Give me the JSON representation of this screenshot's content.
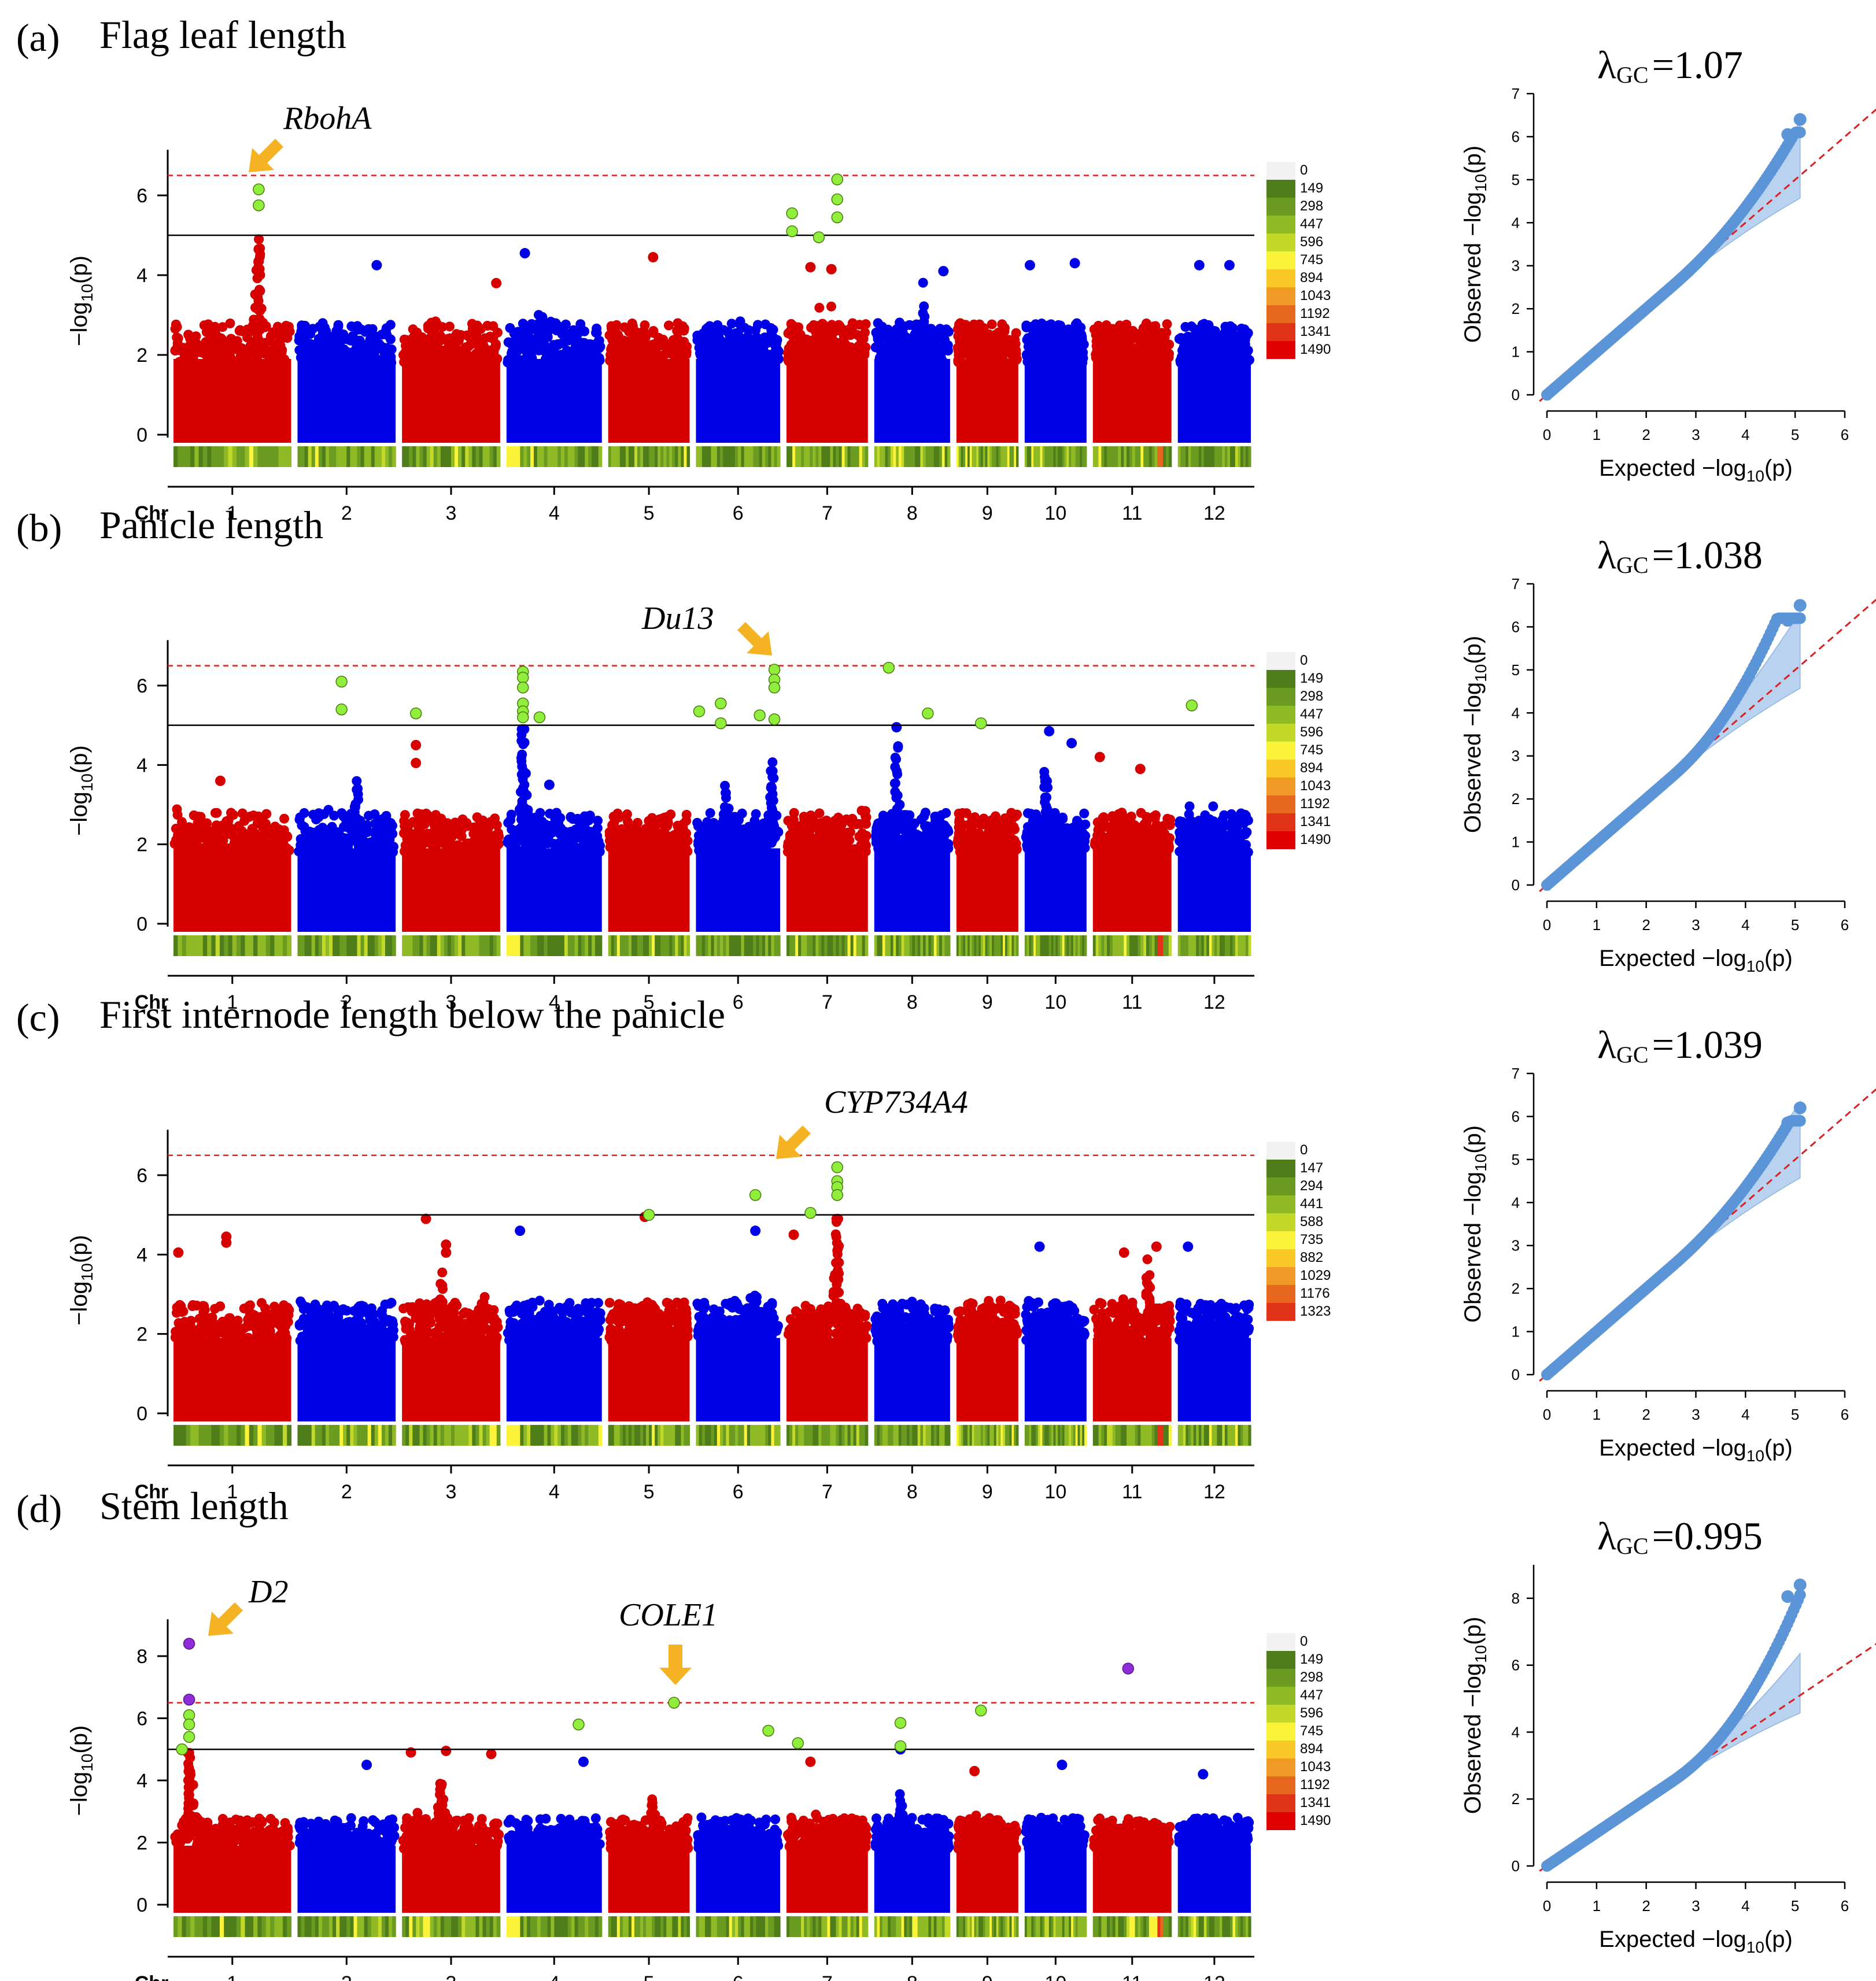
{
  "figure": {
    "genome": {
      "chromosome_axis_label": "Chr",
      "chromosomes": [
        "1",
        "2",
        "3",
        "4",
        "5",
        "6",
        "7",
        "8",
        "9",
        "10",
        "11",
        "12"
      ],
      "chromosome_weights": [
        43,
        36,
        36,
        35,
        30,
        31,
        30,
        28,
        23,
        23,
        29,
        27
      ],
      "colors": {
        "odd": "#d60000",
        "even": "#0000e6",
        "significant": "#90ee3c",
        "top_hit": "#8f2bd8",
        "arrow": "#f5b323",
        "qq_point": "#5b95d8",
        "qq_band": "#b9d2f0",
        "qq_line": "#d92020",
        "threshold_red": "#d92020"
      }
    },
    "density_legend_colors": [
      "#f2f2f2",
      "#4f7d19",
      "#6b9c21",
      "#8fba26",
      "#c3d92a",
      "#fbf23a",
      "#f8c826",
      "#f19926",
      "#e8671e",
      "#e03318",
      "#e00000"
    ],
    "panels": [
      {
        "letter": "(a)",
        "title": "Flag leaf length",
        "gene": "RbohA",
        "gene_chr": 1,
        "gene_pos": 0.72,
        "lambda_label": "λ",
        "lambda_sub": "GC",
        "lambda_value": "=1.07",
        "y_ticks": [
          "0",
          "2",
          "4",
          "6"
        ],
        "ylim": [
          0,
          7
        ],
        "suggestive": 5.0,
        "genomewide": 6.5,
        "density_legend": [
          "0",
          "149",
          "298",
          "447",
          "596",
          "745",
          "894",
          "1043",
          "1192",
          "1341",
          "1490"
        ],
        "peaks": [
          [
            1,
            0.72,
            3.0
          ],
          [
            4,
            0.35,
            1.0
          ],
          [
            7,
            0.4,
            0.8
          ],
          [
            7,
            0.55,
            0.6
          ],
          [
            8,
            0.65,
            1.2
          ]
        ],
        "sig_points": [
          [
            1,
            0.72,
            6.15
          ],
          [
            1,
            0.72,
            5.75
          ],
          [
            7,
            0.08,
            5.55
          ],
          [
            7,
            0.08,
            5.1
          ],
          [
            7,
            0.4,
            4.95
          ],
          [
            7,
            0.62,
            6.4
          ],
          [
            7,
            0.62,
            5.9
          ],
          [
            7,
            0.62,
            5.45
          ]
        ],
        "top_points": [],
        "hi_points": [
          [
            1,
            0.72,
            4.65
          ],
          [
            1,
            0.72,
            4.35
          ],
          [
            4,
            0.2,
            4.55
          ],
          [
            5,
            0.55,
            4.45
          ],
          [
            7,
            0.3,
            4.2
          ],
          [
            7,
            0.55,
            4.15
          ],
          [
            8,
            0.9,
            4.1
          ],
          [
            10,
            0.1,
            4.25
          ],
          [
            10,
            0.8,
            4.3
          ],
          [
            12,
            0.3,
            4.25
          ],
          [
            12,
            0.7,
            4.25
          ],
          [
            2,
            0.8,
            4.25
          ],
          [
            3,
            0.95,
            3.8
          ]
        ],
        "qq_extra": 1.2,
        "qq_max_obs": 6.4,
        "qq_y_ticks": [
          "0",
          "1",
          "2",
          "3",
          "4",
          "5",
          "6",
          "7"
        ],
        "qq_ylim": [
          0,
          7
        ]
      },
      {
        "letter": "(b)",
        "title": "Panicle length",
        "gene": "Du13",
        "gene_chr": 6,
        "gene_pos": 0.92,
        "lambda_label": "λ",
        "lambda_sub": "GC",
        "lambda_value": "=1.038",
        "y_ticks": [
          "0",
          "2",
          "4",
          "6"
        ],
        "ylim": [
          0,
          7
        ],
        "suggestive": 5.0,
        "genomewide": 6.5,
        "density_legend": [
          "0",
          "149",
          "298",
          "447",
          "596",
          "745",
          "894",
          "1043",
          "1192",
          "1341",
          "1490"
        ],
        "peaks": [
          [
            4,
            0.18,
            3.5
          ],
          [
            8,
            0.3,
            2.5
          ],
          [
            6,
            0.35,
            1.5
          ],
          [
            6,
            0.9,
            2.0
          ],
          [
            10,
            0.35,
            1.8
          ],
          [
            2,
            0.6,
            1.5
          ]
        ],
        "sig_points": [
          [
            2,
            0.45,
            6.1
          ],
          [
            2,
            0.45,
            5.4
          ],
          [
            3,
            0.15,
            5.3
          ],
          [
            4,
            0.18,
            6.35
          ],
          [
            4,
            0.18,
            6.2
          ],
          [
            4,
            0.18,
            5.95
          ],
          [
            4,
            0.18,
            5.55
          ],
          [
            4,
            0.18,
            5.35
          ],
          [
            4,
            0.18,
            5.2
          ],
          [
            4,
            0.35,
            5.2
          ],
          [
            6,
            0.05,
            5.35
          ],
          [
            6,
            0.3,
            5.55
          ],
          [
            6,
            0.3,
            5.05
          ],
          [
            6,
            0.75,
            5.25
          ],
          [
            6,
            0.92,
            6.4
          ],
          [
            6,
            0.92,
            6.15
          ],
          [
            6,
            0.92,
            5.95
          ],
          [
            6,
            0.92,
            5.15
          ],
          [
            8,
            0.2,
            6.45
          ],
          [
            8,
            0.7,
            5.3
          ],
          [
            9,
            0.4,
            5.05
          ],
          [
            12,
            0.2,
            5.5
          ]
        ],
        "top_points": [],
        "hi_points": [
          [
            3,
            0.15,
            4.5
          ],
          [
            3,
            0.15,
            4.05
          ],
          [
            8,
            0.3,
            4.95
          ],
          [
            10,
            0.4,
            4.85
          ],
          [
            10,
            0.75,
            4.55
          ],
          [
            11,
            0.1,
            4.2
          ],
          [
            11,
            0.6,
            3.9
          ],
          [
            4,
            0.45,
            3.5
          ],
          [
            1,
            0.4,
            3.6
          ]
        ],
        "qq_extra": 2.4,
        "qq_max_obs": 6.5,
        "qq_y_ticks": [
          "0",
          "1",
          "2",
          "3",
          "4",
          "5",
          "6",
          "7"
        ],
        "qq_ylim": [
          0,
          7
        ]
      },
      {
        "letter": "(c)",
        "title": "First internode length below the panicle",
        "gene": "CYP734A4",
        "gene_chr": 6,
        "gene_pos": 0.96,
        "lambda_label": "λ",
        "lambda_sub": "GC",
        "lambda_value": "=1.039",
        "y_ticks": [
          "0",
          "2",
          "4",
          "6"
        ],
        "ylim": [
          0,
          7
        ],
        "suggestive": 5.0,
        "genomewide": 6.5,
        "density_legend": [
          "0",
          "147",
          "294",
          "441",
          "588",
          "735",
          "882",
          "1029",
          "1176",
          "1323"
        ],
        "peaks": [
          [
            7,
            0.62,
            3.5
          ],
          [
            3,
            0.4,
            1.5
          ],
          [
            11,
            0.7,
            1.5
          ],
          [
            6,
            0.7,
            1.0
          ]
        ],
        "sig_points": [
          [
            5,
            0.5,
            5.0
          ],
          [
            6,
            0.7,
            5.5
          ],
          [
            7,
            0.3,
            5.05
          ],
          [
            7,
            0.62,
            6.2
          ],
          [
            7,
            0.62,
            5.85
          ],
          [
            7,
            0.62,
            5.7
          ],
          [
            7,
            0.62,
            5.5
          ]
        ],
        "top_points": [],
        "hi_points": [
          [
            3,
            0.25,
            4.9
          ],
          [
            5,
            0.45,
            4.95
          ],
          [
            4,
            0.15,
            4.6
          ],
          [
            6,
            0.7,
            4.6
          ],
          [
            7,
            0.1,
            4.5
          ],
          [
            1,
            0.45,
            4.45
          ],
          [
            1,
            0.45,
            4.3
          ],
          [
            1,
            0.05,
            4.05
          ],
          [
            10,
            0.25,
            4.2
          ],
          [
            11,
            0.4,
            4.05
          ],
          [
            11,
            0.8,
            4.2
          ],
          [
            12,
            0.15,
            4.2
          ],
          [
            3,
            0.45,
            4.25
          ],
          [
            3,
            0.45,
            4.05
          ]
        ],
        "qq_extra": 1.2,
        "qq_max_obs": 6.2,
        "qq_y_ticks": [
          "0",
          "1",
          "2",
          "3",
          "4",
          "5",
          "6",
          "7"
        ],
        "qq_ylim": [
          0,
          7
        ]
      },
      {
        "letter": "(d)",
        "title": "Stem length",
        "gene": "D2",
        "gene_chr": 1,
        "gene_pos": 0.14,
        "gene2": "COLE1",
        "gene2_chr": 5,
        "gene2_pos": 0.8,
        "lambda_label": "λ",
        "lambda_sub": "GC",
        "lambda_value": "=0.995",
        "y_ticks": [
          "0",
          "2",
          "4",
          "6",
          "8"
        ],
        "ylim": [
          0,
          9
        ],
        "suggestive": 5.0,
        "genomewide": 6.5,
        "density_legend": [
          "0",
          "149",
          "298",
          "447",
          "596",
          "745",
          "894",
          "1043",
          "1192",
          "1341",
          "1490"
        ],
        "peaks": [
          [
            1,
            0.14,
            3.0
          ],
          [
            3,
            0.4,
            2.0
          ],
          [
            5,
            0.55,
            1.5
          ],
          [
            8,
            0.35,
            1.5
          ]
        ],
        "sig_points": [
          [
            1,
            0.14,
            6.6
          ],
          [
            1,
            0.14,
            6.1
          ],
          [
            1,
            0.14,
            5.8
          ],
          [
            1,
            0.14,
            5.4
          ],
          [
            1,
            0.08,
            5.0
          ],
          [
            4,
            0.75,
            5.8
          ],
          [
            5,
            0.8,
            6.5
          ],
          [
            6,
            0.85,
            5.6
          ],
          [
            7,
            0.15,
            5.2
          ],
          [
            8,
            0.35,
            5.85
          ],
          [
            8,
            0.35,
            5.1
          ],
          [
            9,
            0.4,
            6.25
          ]
        ],
        "top_points": [
          [
            1,
            0.14,
            8.4
          ],
          [
            1,
            0.14,
            6.6
          ],
          [
            11,
            0.45,
            7.6
          ]
        ],
        "hi_points": [
          [
            3,
            0.1,
            4.9
          ],
          [
            3,
            0.45,
            4.95
          ],
          [
            3,
            0.9,
            4.85
          ],
          [
            7,
            0.3,
            4.6
          ],
          [
            8,
            0.35,
            5.0
          ],
          [
            9,
            0.3,
            4.3
          ],
          [
            10,
            0.6,
            4.5
          ],
          [
            4,
            0.8,
            4.6
          ],
          [
            2,
            0.7,
            4.5
          ],
          [
            12,
            0.35,
            4.2
          ]
        ],
        "qq_extra": 3.0,
        "qq_max_obs": 8.4,
        "qq_y_ticks": [
          "0",
          "2",
          "4",
          "6",
          "8"
        ],
        "qq_ylim": [
          0,
          9
        ]
      }
    ],
    "qq": {
      "x_ticks": [
        "0",
        "1",
        "2",
        "3",
        "4",
        "5",
        "6"
      ],
      "xlim": [
        0,
        6
      ],
      "x_label_text": "Expected  −log",
      "y_label_text": "Observed  −log",
      "sub": "10",
      "p_text": "(p)"
    },
    "manhattan_y_label": "−log",
    "manhattan_y_sub": "10",
    "manhattan_y_p": "(p)"
  }
}
